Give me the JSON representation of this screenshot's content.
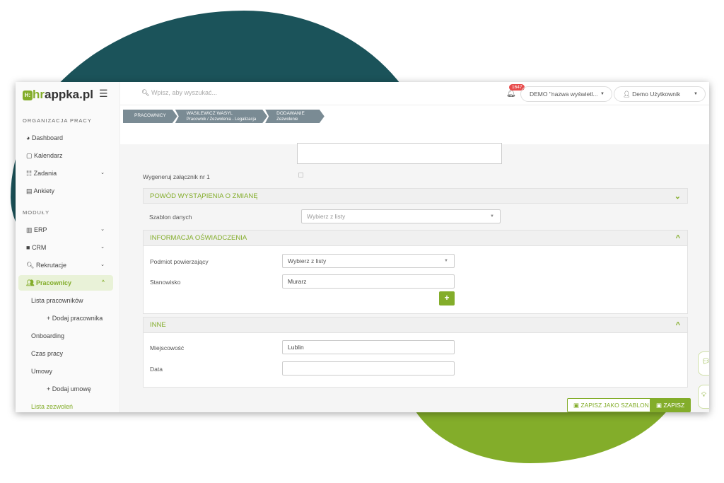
{
  "logo": {
    "text": "hrappka.pl",
    "box": "H:"
  },
  "sidebar": {
    "section1": "ORGANIZACJA PRACY",
    "section2": "MODUŁY",
    "items": [
      {
        "label": "Dashboard",
        "icon": "dashboard-icon"
      },
      {
        "label": "Kalendarz",
        "icon": "calendar-icon"
      },
      {
        "label": "Zadania",
        "icon": "tasks-icon"
      },
      {
        "label": "Ankiety",
        "icon": "survey-icon"
      },
      {
        "label": "ERP",
        "icon": "building-icon"
      },
      {
        "label": "CRM",
        "icon": "briefcase-icon"
      },
      {
        "label": "Rekrutacje",
        "icon": "search-icon"
      },
      {
        "label": "Pracownicy",
        "icon": "users-icon"
      }
    ],
    "subitems": [
      "Lista pracowników",
      "Dodaj pracownika",
      "Onboarding",
      "Czas pracy",
      "Umowy",
      "Dodaj umowę",
      "Lista zezwoleń"
    ]
  },
  "header": {
    "search_placeholder": "Wpisz, aby wyszukać...",
    "notifications": "1647",
    "company": "DEMO \"nazwa wyświetl...",
    "user": "Demo Użytkownik"
  },
  "breadcrumb": [
    {
      "title": "PRACOWNICY",
      "sub": ""
    },
    {
      "title": "WASILEWICZ WASYL",
      "sub": "Pracownik / Zezwolenia - Legalizacja"
    },
    {
      "title": "DODAWANIE",
      "sub": "Zezwolenie"
    }
  ],
  "form": {
    "generate_label": "Wygeneruj załącznik nr 1",
    "section_reason": {
      "title": "POWÓD WYSTĄPIENIA O ZMIANĘ",
      "template_label": "Szablon danych",
      "template_value": "Wybierz z listy"
    },
    "section_info": {
      "title": "INFORMACJA OŚWIADCZENIA",
      "entity_label": "Podmiot powierzający",
      "entity_value": "Wybierz z listy",
      "position_label": "Stanowisko",
      "position_value": "Murarz"
    },
    "section_other": {
      "title": "INNE",
      "city_label": "Miejscowość",
      "city_value": "Lublin",
      "date_label": "Data",
      "date_value": ""
    }
  },
  "actions": {
    "save_template": "ZAPISZ JAKO SZABLON",
    "save": "ZAPISZ"
  },
  "colors": {
    "accent": "#83ad2a",
    "dark": "#1b535a",
    "crumb": "#7a8b94",
    "badge": "#e84c4c"
  }
}
